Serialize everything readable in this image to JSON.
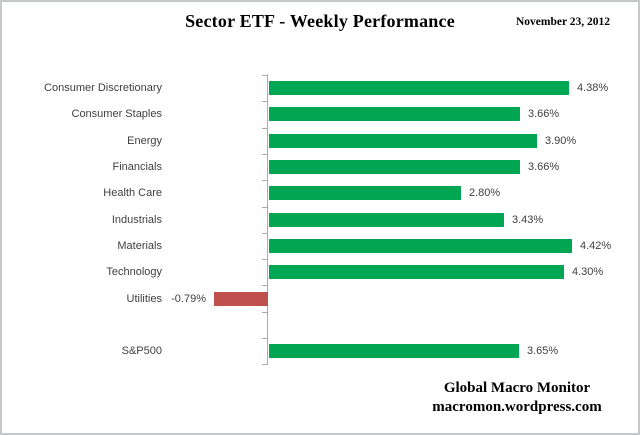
{
  "header": {
    "title": "Sector ETF - Weekly Performance",
    "date": "November 23, 2012"
  },
  "footer": {
    "line1": "Global Macro Monitor",
    "line2": "macromon.wordpress.com"
  },
  "colors": {
    "positive_bar": "#00A651",
    "negative_bar": "#C0504D",
    "axis": "#ABABAB",
    "label_text": "#3F3F3F"
  },
  "chart_data": {
    "type": "bar",
    "orientation": "horizontal",
    "title": "Sector ETF - Weekly Performance",
    "subtitle": "November 23, 2012",
    "categories": [
      "Consumer Discretionary",
      "Consumer Staples",
      "Energy",
      "Financials",
      "Health Care",
      "Industrials",
      "Materials",
      "Technology",
      "Utilities",
      "S&P500"
    ],
    "values": [
      4.38,
      3.66,
      3.9,
      3.66,
      2.8,
      3.43,
      4.42,
      4.3,
      -0.79,
      3.65
    ],
    "value_labels": [
      "4.38%",
      "3.66%",
      "3.90%",
      "3.66%",
      "2.80%",
      "3.43%",
      "4.42%",
      "4.30%",
      "-0.79%",
      "3.65%"
    ],
    "xlabel": "",
    "ylabel": "",
    "xlim": [
      -1.0,
      5.0
    ],
    "grid": false,
    "legend": false,
    "gap_slots": [
      9
    ],
    "total_slots": 11
  }
}
